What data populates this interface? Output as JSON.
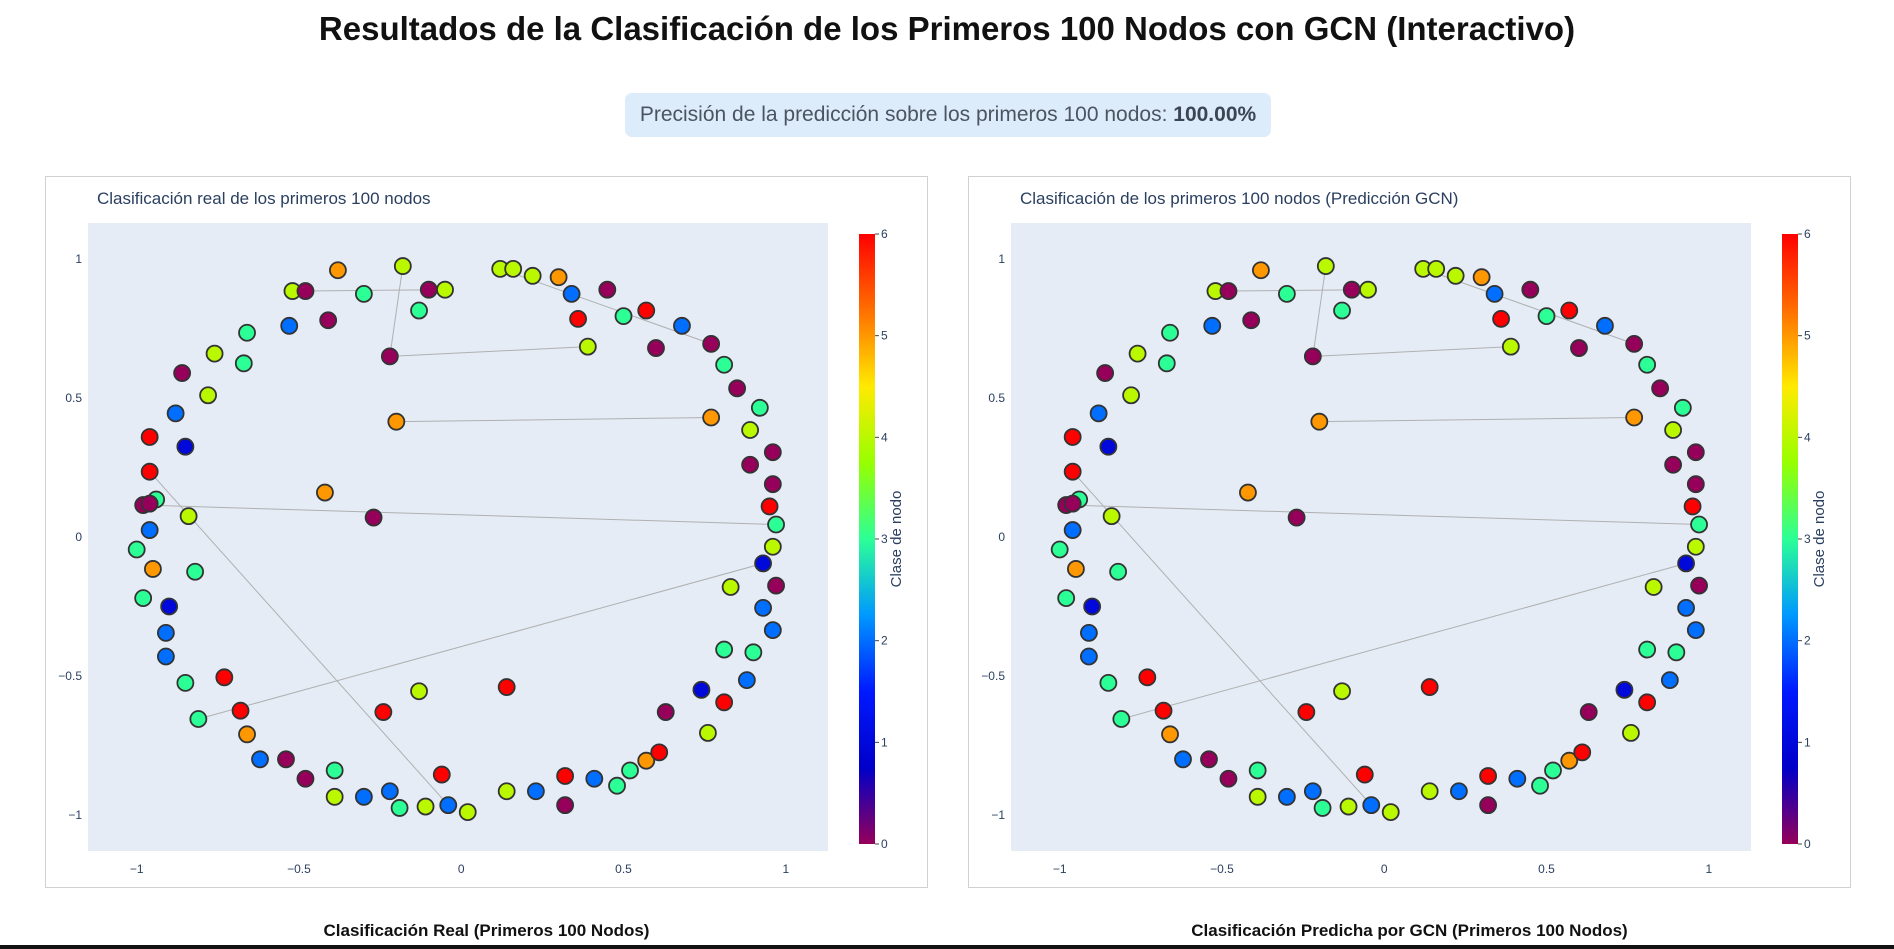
{
  "page": {
    "title": "Resultados de la Clasificación de los Primeros 100 Nodos con GCN (Interactivo)",
    "accuracy_prefix": "Precisión de la predicción sobre los primeros 100 nodos: ",
    "accuracy_value": "100.00%"
  },
  "captions": {
    "real": "Clasificación Real (Primeros 100 Nodos)",
    "pred": "Clasificación Predicha por GCN (Primeros 100 Nodos)"
  },
  "colors": {
    "plot_background": "#e5ecf6",
    "edge": "#b0b0b0",
    "marker_outline": "#333333",
    "colorscale_rainbow": [
      "#96005a",
      "#0000c8",
      "#0019ff",
      "#0098ff",
      "#2cff96",
      "#97ff00",
      "#ffea00",
      "#ff6f00",
      "#ff0000"
    ]
  },
  "chart_data": [
    {
      "type": "scatter",
      "title": "Clasificación real de los primeros 100 nodos",
      "xlim": [
        -1.15,
        1.13
      ],
      "ylim": [
        -1.13,
        1.13
      ],
      "xticks": [
        -1,
        -0.5,
        0,
        0.5,
        1
      ],
      "xtick_labels": [
        "−1",
        "−0.5",
        "0",
        "0.5",
        "1"
      ],
      "yticks": [
        1,
        0.5,
        0,
        -0.5,
        -1
      ],
      "ytick_labels": [
        "1",
        "0.5",
        "0",
        "−0.5",
        "−1"
      ],
      "grid": false,
      "legend": "none",
      "colorbar": {
        "title": "Clase de nodo",
        "range": [
          0,
          6
        ],
        "ticks": [
          0,
          1,
          2,
          3,
          4,
          5,
          6
        ],
        "position": "right"
      },
      "edges": [
        [
          3,
          23
        ],
        [
          23,
          27
        ],
        [
          0,
          6
        ],
        [
          7,
          26
        ],
        [
          44,
          48
        ],
        [
          52,
          71
        ],
        [
          39,
          91
        ],
        [
          32,
          33
        ]
      ],
      "nodes": [
        {
          "x": -0.52,
          "y": 0.885,
          "c": 4
        },
        {
          "x": -0.48,
          "y": 0.885,
          "c": 0
        },
        {
          "x": -0.38,
          "y": 0.96,
          "c": 5
        },
        {
          "x": -0.18,
          "y": 0.975,
          "c": 4
        },
        {
          "x": -0.3,
          "y": 0.875,
          "c": 3
        },
        {
          "x": -0.1,
          "y": 0.89,
          "c": 0
        },
        {
          "x": -0.05,
          "y": 0.89,
          "c": 4
        },
        {
          "x": 0.12,
          "y": 0.965,
          "c": 4
        },
        {
          "x": 0.16,
          "y": 0.965,
          "c": 4
        },
        {
          "x": 0.22,
          "y": 0.94,
          "c": 4
        },
        {
          "x": 0.3,
          "y": 0.935,
          "c": 5
        },
        {
          "x": 0.34,
          "y": 0.875,
          "c": 2
        },
        {
          "x": 0.45,
          "y": 0.89,
          "c": 0
        },
        {
          "x": -0.53,
          "y": 0.76,
          "c": 2
        },
        {
          "x": -0.41,
          "y": 0.78,
          "c": 0
        },
        {
          "x": -0.13,
          "y": 0.815,
          "c": 3
        },
        {
          "x": 0.36,
          "y": 0.785,
          "c": 6
        },
        {
          "x": 0.5,
          "y": 0.795,
          "c": 3
        },
        {
          "x": 0.57,
          "y": 0.815,
          "c": 6
        },
        {
          "x": -0.66,
          "y": 0.735,
          "c": 3
        },
        {
          "x": -0.76,
          "y": 0.66,
          "c": 4
        },
        {
          "x": -0.67,
          "y": 0.625,
          "c": 3
        },
        {
          "x": -0.86,
          "y": 0.59,
          "c": 0
        },
        {
          "x": -0.22,
          "y": 0.65,
          "c": 0
        },
        {
          "x": 0.68,
          "y": 0.76,
          "c": 2
        },
        {
          "x": 0.6,
          "y": 0.68,
          "c": 0
        },
        {
          "x": 0.77,
          "y": 0.695,
          "c": 0
        },
        {
          "x": 0.39,
          "y": 0.685,
          "c": 4
        },
        {
          "x": 0.81,
          "y": 0.62,
          "c": 3
        },
        {
          "x": -0.78,
          "y": 0.51,
          "c": 4
        },
        {
          "x": 0.85,
          "y": 0.535,
          "c": 0
        },
        {
          "x": -0.88,
          "y": 0.445,
          "c": 2
        },
        {
          "x": -0.2,
          "y": 0.415,
          "c": 5
        },
        {
          "x": 0.77,
          "y": 0.43,
          "c": 5
        },
        {
          "x": 0.92,
          "y": 0.465,
          "c": 3
        },
        {
          "x": 0.89,
          "y": 0.385,
          "c": 4
        },
        {
          "x": -0.96,
          "y": 0.36,
          "c": 6
        },
        {
          "x": -0.85,
          "y": 0.325,
          "c": 1
        },
        {
          "x": 0.96,
          "y": 0.305,
          "c": 0
        },
        {
          "x": -0.96,
          "y": 0.235,
          "c": 6
        },
        {
          "x": 0.89,
          "y": 0.26,
          "c": 0
        },
        {
          "x": -0.42,
          "y": 0.16,
          "c": 5
        },
        {
          "x": 0.96,
          "y": 0.19,
          "c": 0
        },
        {
          "x": -0.94,
          "y": 0.135,
          "c": 3
        },
        {
          "x": -0.98,
          "y": 0.115,
          "c": 0
        },
        {
          "x": 0.95,
          "y": 0.11,
          "c": 6
        },
        {
          "x": -0.27,
          "y": 0.07,
          "c": 0
        },
        {
          "x": -0.84,
          "y": 0.075,
          "c": 4
        },
        {
          "x": 0.97,
          "y": 0.045,
          "c": 3
        },
        {
          "x": -0.96,
          "y": 0.025,
          "c": 2
        },
        {
          "x": 0.96,
          "y": -0.035,
          "c": 4
        },
        {
          "x": -1.0,
          "y": -0.045,
          "c": 3
        },
        {
          "x": 0.93,
          "y": -0.095,
          "c": 1
        },
        {
          "x": -0.95,
          "y": -0.115,
          "c": 5
        },
        {
          "x": -0.82,
          "y": -0.125,
          "c": 3
        },
        {
          "x": 0.97,
          "y": -0.175,
          "c": 0
        },
        {
          "x": 0.83,
          "y": -0.18,
          "c": 4
        },
        {
          "x": -0.98,
          "y": -0.22,
          "c": 3
        },
        {
          "x": -0.9,
          "y": -0.25,
          "c": 1
        },
        {
          "x": 0.93,
          "y": -0.255,
          "c": 2
        },
        {
          "x": -0.91,
          "y": -0.345,
          "c": 2
        },
        {
          "x": 0.96,
          "y": -0.335,
          "c": 2
        },
        {
          "x": 0.81,
          "y": -0.405,
          "c": 3
        },
        {
          "x": 0.9,
          "y": -0.415,
          "c": 3
        },
        {
          "x": -0.91,
          "y": -0.43,
          "c": 2
        },
        {
          "x": -0.85,
          "y": -0.525,
          "c": 3
        },
        {
          "x": -0.73,
          "y": -0.505,
          "c": 6
        },
        {
          "x": 0.88,
          "y": -0.515,
          "c": 2
        },
        {
          "x": 0.74,
          "y": -0.55,
          "c": 1
        },
        {
          "x": -0.13,
          "y": -0.555,
          "c": 4
        },
        {
          "x": 0.14,
          "y": -0.54,
          "c": 6
        },
        {
          "x": -0.81,
          "y": -0.655,
          "c": 3
        },
        {
          "x": -0.68,
          "y": -0.625,
          "c": 6
        },
        {
          "x": -0.24,
          "y": -0.63,
          "c": 6
        },
        {
          "x": 0.81,
          "y": -0.595,
          "c": 6
        },
        {
          "x": 0.63,
          "y": -0.63,
          "c": 0
        },
        {
          "x": 0.76,
          "y": -0.705,
          "c": 4
        },
        {
          "x": -0.66,
          "y": -0.71,
          "c": 5
        },
        {
          "x": -0.62,
          "y": -0.8,
          "c": 2
        },
        {
          "x": -0.54,
          "y": -0.8,
          "c": 0
        },
        {
          "x": -0.48,
          "y": -0.87,
          "c": 0
        },
        {
          "x": -0.39,
          "y": -0.84,
          "c": 3
        },
        {
          "x": 0.52,
          "y": -0.84,
          "c": 3
        },
        {
          "x": 0.57,
          "y": -0.805,
          "c": 5
        },
        {
          "x": 0.61,
          "y": -0.775,
          "c": 6
        },
        {
          "x": -0.39,
          "y": -0.935,
          "c": 4
        },
        {
          "x": -0.3,
          "y": -0.935,
          "c": 2
        },
        {
          "x": -0.22,
          "y": -0.915,
          "c": 2
        },
        {
          "x": -0.19,
          "y": -0.975,
          "c": 3
        },
        {
          "x": -0.06,
          "y": -0.855,
          "c": 6
        },
        {
          "x": -0.11,
          "y": -0.97,
          "c": 4
        },
        {
          "x": -0.04,
          "y": -0.965,
          "c": 2
        },
        {
          "x": 0.02,
          "y": -0.99,
          "c": 4
        },
        {
          "x": 0.14,
          "y": -0.915,
          "c": 4
        },
        {
          "x": 0.23,
          "y": -0.915,
          "c": 2
        },
        {
          "x": 0.32,
          "y": -0.86,
          "c": 6
        },
        {
          "x": 0.32,
          "y": -0.965,
          "c": 0
        },
        {
          "x": 0.41,
          "y": -0.87,
          "c": 2
        },
        {
          "x": 0.48,
          "y": -0.895,
          "c": 3
        },
        {
          "x": -0.96,
          "y": 0.12,
          "c": 0
        }
      ]
    },
    {
      "type": "scatter",
      "title": "Clasificación de los primeros 100 nodos (Predicción GCN)",
      "xlim": [
        -1.15,
        1.13
      ],
      "ylim": [
        -1.13,
        1.13
      ],
      "xticks": [
        -1,
        -0.5,
        0,
        0.5,
        1
      ],
      "xtick_labels": [
        "−1",
        "−0.5",
        "0",
        "0.5",
        "1"
      ],
      "yticks": [
        1,
        0.5,
        0,
        -0.5,
        -1
      ],
      "ytick_labels": [
        "1",
        "0.5",
        "0",
        "−0.5",
        "−1"
      ],
      "grid": false,
      "legend": "none",
      "colorbar": {
        "title": "Clase de nodo",
        "range": [
          0,
          6
        ],
        "ticks": [
          0,
          1,
          2,
          3,
          4,
          5,
          6
        ],
        "position": "right"
      },
      "edges": [
        [
          3,
          23
        ],
        [
          23,
          27
        ],
        [
          0,
          6
        ],
        [
          7,
          26
        ],
        [
          44,
          48
        ],
        [
          52,
          71
        ],
        [
          39,
          91
        ],
        [
          32,
          33
        ]
      ],
      "nodes": [
        {
          "x": -0.52,
          "y": 0.885,
          "c": 4
        },
        {
          "x": -0.48,
          "y": 0.885,
          "c": 0
        },
        {
          "x": -0.38,
          "y": 0.96,
          "c": 5
        },
        {
          "x": -0.18,
          "y": 0.975,
          "c": 4
        },
        {
          "x": -0.3,
          "y": 0.875,
          "c": 3
        },
        {
          "x": -0.1,
          "y": 0.89,
          "c": 0
        },
        {
          "x": -0.05,
          "y": 0.89,
          "c": 4
        },
        {
          "x": 0.12,
          "y": 0.965,
          "c": 4
        },
        {
          "x": 0.16,
          "y": 0.965,
          "c": 4
        },
        {
          "x": 0.22,
          "y": 0.94,
          "c": 4
        },
        {
          "x": 0.3,
          "y": 0.935,
          "c": 5
        },
        {
          "x": 0.34,
          "y": 0.875,
          "c": 2
        },
        {
          "x": 0.45,
          "y": 0.89,
          "c": 0
        },
        {
          "x": -0.53,
          "y": 0.76,
          "c": 2
        },
        {
          "x": -0.41,
          "y": 0.78,
          "c": 0
        },
        {
          "x": -0.13,
          "y": 0.815,
          "c": 3
        },
        {
          "x": 0.36,
          "y": 0.785,
          "c": 6
        },
        {
          "x": 0.5,
          "y": 0.795,
          "c": 3
        },
        {
          "x": 0.57,
          "y": 0.815,
          "c": 6
        },
        {
          "x": -0.66,
          "y": 0.735,
          "c": 3
        },
        {
          "x": -0.76,
          "y": 0.66,
          "c": 4
        },
        {
          "x": -0.67,
          "y": 0.625,
          "c": 3
        },
        {
          "x": -0.86,
          "y": 0.59,
          "c": 0
        },
        {
          "x": -0.22,
          "y": 0.65,
          "c": 0
        },
        {
          "x": 0.68,
          "y": 0.76,
          "c": 2
        },
        {
          "x": 0.6,
          "y": 0.68,
          "c": 0
        },
        {
          "x": 0.77,
          "y": 0.695,
          "c": 0
        },
        {
          "x": 0.39,
          "y": 0.685,
          "c": 4
        },
        {
          "x": 0.81,
          "y": 0.62,
          "c": 3
        },
        {
          "x": -0.78,
          "y": 0.51,
          "c": 4
        },
        {
          "x": 0.85,
          "y": 0.535,
          "c": 0
        },
        {
          "x": -0.88,
          "y": 0.445,
          "c": 2
        },
        {
          "x": -0.2,
          "y": 0.415,
          "c": 5
        },
        {
          "x": 0.77,
          "y": 0.43,
          "c": 5
        },
        {
          "x": 0.92,
          "y": 0.465,
          "c": 3
        },
        {
          "x": 0.89,
          "y": 0.385,
          "c": 4
        },
        {
          "x": -0.96,
          "y": 0.36,
          "c": 6
        },
        {
          "x": -0.85,
          "y": 0.325,
          "c": 1
        },
        {
          "x": 0.96,
          "y": 0.305,
          "c": 0
        },
        {
          "x": -0.96,
          "y": 0.235,
          "c": 6
        },
        {
          "x": 0.89,
          "y": 0.26,
          "c": 0
        },
        {
          "x": -0.42,
          "y": 0.16,
          "c": 5
        },
        {
          "x": 0.96,
          "y": 0.19,
          "c": 0
        },
        {
          "x": -0.94,
          "y": 0.135,
          "c": 3
        },
        {
          "x": -0.98,
          "y": 0.115,
          "c": 0
        },
        {
          "x": 0.95,
          "y": 0.11,
          "c": 6
        },
        {
          "x": -0.27,
          "y": 0.07,
          "c": 0
        },
        {
          "x": -0.84,
          "y": 0.075,
          "c": 4
        },
        {
          "x": 0.97,
          "y": 0.045,
          "c": 3
        },
        {
          "x": -0.96,
          "y": 0.025,
          "c": 2
        },
        {
          "x": 0.96,
          "y": -0.035,
          "c": 4
        },
        {
          "x": -1.0,
          "y": -0.045,
          "c": 3
        },
        {
          "x": 0.93,
          "y": -0.095,
          "c": 1
        },
        {
          "x": -0.95,
          "y": -0.115,
          "c": 5
        },
        {
          "x": -0.82,
          "y": -0.125,
          "c": 3
        },
        {
          "x": 0.97,
          "y": -0.175,
          "c": 0
        },
        {
          "x": 0.83,
          "y": -0.18,
          "c": 4
        },
        {
          "x": -0.98,
          "y": -0.22,
          "c": 3
        },
        {
          "x": -0.9,
          "y": -0.25,
          "c": 1
        },
        {
          "x": 0.93,
          "y": -0.255,
          "c": 2
        },
        {
          "x": -0.91,
          "y": -0.345,
          "c": 2
        },
        {
          "x": 0.96,
          "y": -0.335,
          "c": 2
        },
        {
          "x": 0.81,
          "y": -0.405,
          "c": 3
        },
        {
          "x": 0.9,
          "y": -0.415,
          "c": 3
        },
        {
          "x": -0.91,
          "y": -0.43,
          "c": 2
        },
        {
          "x": -0.85,
          "y": -0.525,
          "c": 3
        },
        {
          "x": -0.73,
          "y": -0.505,
          "c": 6
        },
        {
          "x": 0.88,
          "y": -0.515,
          "c": 2
        },
        {
          "x": 0.74,
          "y": -0.55,
          "c": 1
        },
        {
          "x": -0.13,
          "y": -0.555,
          "c": 4
        },
        {
          "x": 0.14,
          "y": -0.54,
          "c": 6
        },
        {
          "x": -0.81,
          "y": -0.655,
          "c": 3
        },
        {
          "x": -0.68,
          "y": -0.625,
          "c": 6
        },
        {
          "x": -0.24,
          "y": -0.63,
          "c": 6
        },
        {
          "x": 0.81,
          "y": -0.595,
          "c": 6
        },
        {
          "x": 0.63,
          "y": -0.63,
          "c": 0
        },
        {
          "x": 0.76,
          "y": -0.705,
          "c": 4
        },
        {
          "x": -0.66,
          "y": -0.71,
          "c": 5
        },
        {
          "x": -0.62,
          "y": -0.8,
          "c": 2
        },
        {
          "x": -0.54,
          "y": -0.8,
          "c": 0
        },
        {
          "x": -0.48,
          "y": -0.87,
          "c": 0
        },
        {
          "x": -0.39,
          "y": -0.84,
          "c": 3
        },
        {
          "x": 0.52,
          "y": -0.84,
          "c": 3
        },
        {
          "x": 0.57,
          "y": -0.805,
          "c": 5
        },
        {
          "x": 0.61,
          "y": -0.775,
          "c": 6
        },
        {
          "x": -0.39,
          "y": -0.935,
          "c": 4
        },
        {
          "x": -0.3,
          "y": -0.935,
          "c": 2
        },
        {
          "x": -0.22,
          "y": -0.915,
          "c": 2
        },
        {
          "x": -0.19,
          "y": -0.975,
          "c": 3
        },
        {
          "x": -0.06,
          "y": -0.855,
          "c": 6
        },
        {
          "x": -0.11,
          "y": -0.97,
          "c": 4
        },
        {
          "x": -0.04,
          "y": -0.965,
          "c": 2
        },
        {
          "x": 0.02,
          "y": -0.99,
          "c": 4
        },
        {
          "x": 0.14,
          "y": -0.915,
          "c": 4
        },
        {
          "x": 0.23,
          "y": -0.915,
          "c": 2
        },
        {
          "x": 0.32,
          "y": -0.86,
          "c": 6
        },
        {
          "x": 0.32,
          "y": -0.965,
          "c": 0
        },
        {
          "x": 0.41,
          "y": -0.87,
          "c": 2
        },
        {
          "x": 0.48,
          "y": -0.895,
          "c": 3
        },
        {
          "x": -0.96,
          "y": 0.12,
          "c": 0
        }
      ]
    }
  ]
}
